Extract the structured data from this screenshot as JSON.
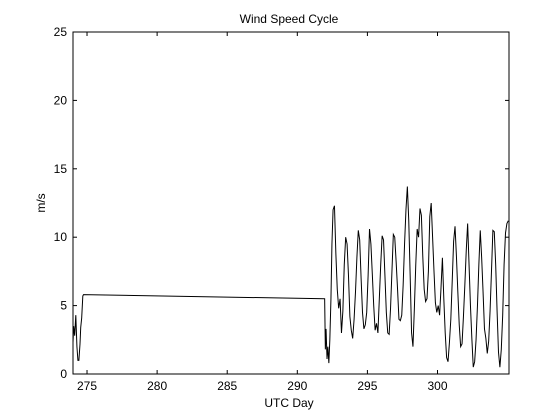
{
  "chart_data": {
    "type": "line",
    "title": "Wind Speed Cycle",
    "xlabel": "UTC Day",
    "ylabel": "m/s",
    "xlim": [
      274.0,
      305.1
    ],
    "ylim": [
      0,
      25
    ],
    "xticks": [
      275,
      280,
      285,
      290,
      295,
      300
    ],
    "yticks": [
      0,
      5,
      10,
      15,
      20,
      25
    ],
    "xtick_labels": [
      "275",
      "280",
      "285",
      "290",
      "295",
      "300"
    ],
    "ytick_labels": [
      "0",
      "5",
      "10",
      "15",
      "20",
      "25"
    ],
    "grid": false,
    "series": [
      {
        "color": "#000000",
        "x": [
          274.0,
          274.05,
          274.12,
          274.2,
          274.28,
          274.35,
          274.42,
          274.5,
          274.55,
          274.62,
          274.7,
          274.75,
          291.95,
          292.0,
          292.05,
          292.12,
          292.18,
          292.25,
          292.32,
          292.4,
          292.47,
          292.55,
          292.65,
          292.75,
          292.85,
          292.95,
          293.05,
          293.15,
          293.25,
          293.35,
          293.45,
          293.55,
          293.65,
          293.75,
          293.85,
          293.95,
          294.05,
          294.15,
          294.25,
          294.35,
          294.45,
          294.55,
          294.65,
          294.75,
          294.85,
          294.95,
          295.05,
          295.15,
          295.25,
          295.35,
          295.45,
          295.55,
          295.65,
          295.75,
          295.85,
          295.95,
          296.05,
          296.15,
          296.25,
          296.35,
          296.45,
          296.55,
          296.65,
          296.75,
          296.85,
          296.95,
          297.05,
          297.15,
          297.25,
          297.35,
          297.45,
          297.55,
          297.65,
          297.75,
          297.85,
          297.95,
          298.05,
          298.15,
          298.25,
          298.35,
          298.45,
          298.55,
          298.65,
          298.75,
          298.85,
          298.95,
          299.05,
          299.15,
          299.25,
          299.35,
          299.45,
          299.55,
          299.65,
          299.75,
          299.85,
          299.95,
          300.05,
          300.15,
          300.25,
          300.35,
          300.45,
          300.55,
          300.65,
          300.75,
          300.85,
          300.95,
          301.05,
          301.15,
          301.25,
          301.35,
          301.45,
          301.55,
          301.65,
          301.75,
          301.85,
          301.95,
          302.05,
          302.15,
          302.25,
          302.35,
          302.45,
          302.55,
          302.65,
          302.75,
          302.85,
          302.95,
          303.05,
          303.15,
          303.25,
          303.35,
          303.45,
          303.55,
          303.65,
          303.75,
          303.85,
          303.95,
          304.05,
          304.15,
          304.25,
          304.35,
          304.45,
          304.55,
          304.65,
          304.75,
          304.85,
          304.95,
          305.05
        ],
        "y": [
          2.3,
          3.5,
          2.8,
          4.3,
          2.0,
          1.0,
          1.0,
          2.2,
          3.4,
          4.1,
          5.7,
          5.8,
          5.5,
          1.8,
          3.3,
          1.1,
          2.0,
          0.8,
          2.5,
          5.5,
          9.5,
          12.0,
          12.3,
          8.8,
          6.2,
          4.8,
          5.5,
          3.0,
          4.6,
          8.0,
          10.0,
          9.5,
          7.2,
          4.2,
          3.2,
          2.6,
          4.0,
          6.0,
          8.5,
          10.5,
          9.8,
          7.0,
          4.5,
          3.3,
          3.6,
          4.5,
          7.2,
          10.6,
          9.5,
          7.3,
          5.0,
          3.2,
          3.7,
          3.0,
          5.5,
          8.0,
          10.1,
          9.8,
          7.2,
          4.5,
          3.0,
          2.9,
          4.8,
          7.5,
          10.2,
          10.0,
          8.2,
          6.2,
          4.0,
          3.9,
          4.3,
          6.5,
          9.5,
          12.0,
          13.7,
          11.2,
          7.2,
          3.0,
          2.0,
          4.8,
          8.0,
          10.6,
          10.0,
          12.1,
          11.6,
          8.6,
          6.2,
          5.3,
          5.5,
          7.5,
          11.5,
          12.5,
          10.0,
          7.5,
          5.2,
          4.5,
          5.0,
          4.3,
          6.3,
          8.5,
          5.5,
          3.0,
          1.2,
          0.9,
          2.3,
          4.0,
          6.8,
          9.7,
          10.8,
          8.6,
          6.0,
          3.6,
          2.0,
          2.2,
          4.2,
          6.5,
          9.0,
          11.0,
          8.0,
          5.0,
          2.6,
          0.5,
          0.9,
          2.5,
          5.0,
          8.0,
          10.5,
          8.5,
          6.0,
          3.3,
          2.6,
          1.5,
          2.4,
          4.6,
          7.5,
          10.5,
          10.4,
          8.0,
          4.6,
          1.6,
          0.5,
          1.8,
          4.3,
          8.0,
          10.3,
          11.0,
          11.2
        ]
      }
    ]
  }
}
